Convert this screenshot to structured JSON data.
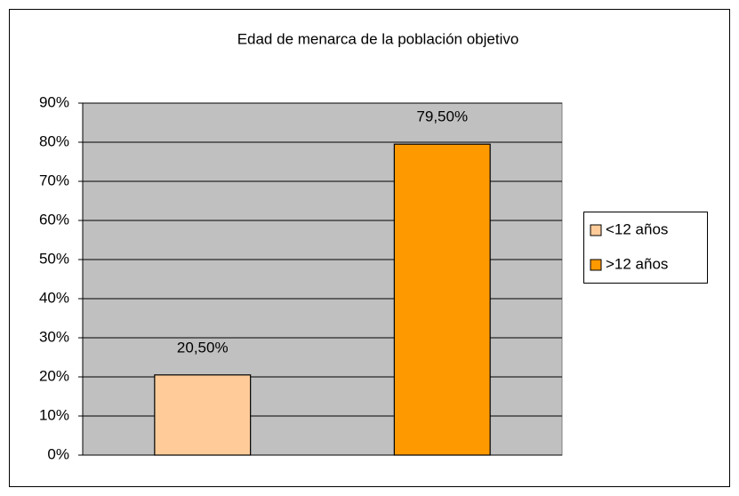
{
  "chart_data": {
    "type": "bar",
    "title": "Edad de menarca de la población objetivo",
    "categories": [
      null
    ],
    "series": [
      {
        "name": "<12 años",
        "color": "#ffcc99",
        "values": [
          20.5
        ],
        "value_labels": [
          "20,50%"
        ]
      },
      {
        "name": ">12 años",
        "color": "#ff9900",
        "values": [
          79.5
        ],
        "value_labels": [
          "79,50%"
        ]
      }
    ],
    "ylim": [
      0,
      90
    ],
    "yticks": [
      {
        "value": 0,
        "label": "0%"
      },
      {
        "value": 10,
        "label": "10%"
      },
      {
        "value": 20,
        "label": "20%"
      },
      {
        "value": 30,
        "label": "30%"
      },
      {
        "value": 40,
        "label": "40%"
      },
      {
        "value": 50,
        "label": "50%"
      },
      {
        "value": 60,
        "label": "60%"
      },
      {
        "value": 70,
        "label": "70%"
      },
      {
        "value": 80,
        "label": "80%"
      },
      {
        "value": 90,
        "label": "90%"
      }
    ],
    "grid": true,
    "legend": "right",
    "plot_background": "#c0c0c0"
  }
}
